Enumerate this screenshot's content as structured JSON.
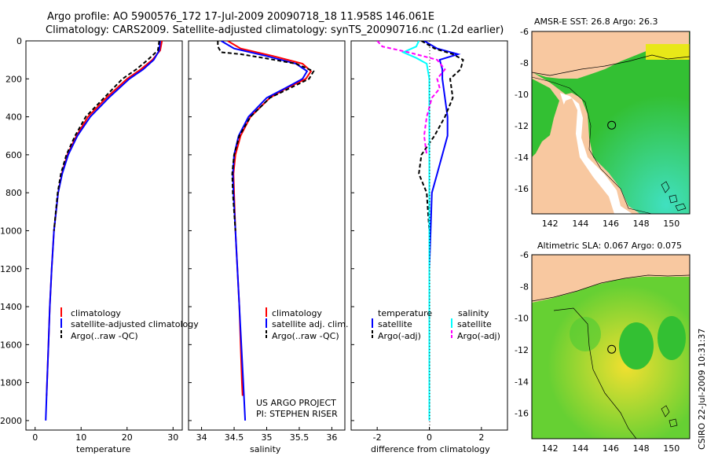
{
  "header": {
    "line1": "Argo profile: AO 5900576_172 17-Jul-2009 20090718_18 11.958S 146.061E",
    "line2": "Climatology: CARS2009. Satellite-adjusted climatology: synTS_20090716.nc (1.2d earlier)"
  },
  "footer_side": "CSIRO 22-Jul-2009 10:31:37",
  "colors": {
    "clim": "#ff0000",
    "sat": "#0000ff",
    "argo": "#000000",
    "sat_sal": "#00ffff",
    "argo_sal": "#ff00ff",
    "land": "#f8c8a0",
    "ocean": "#33c033"
  },
  "chart_data": [
    {
      "type": "line",
      "name": "temperature",
      "xlabel": "temperature",
      "ylabel": "",
      "xlim": [
        -2,
        32
      ],
      "ylim": [
        2050,
        0
      ],
      "xticks": [
        "0",
        "10",
        "20",
        "30"
      ],
      "yticks": [
        "0",
        "200",
        "400",
        "600",
        "800",
        "1000",
        "1200",
        "1400",
        "1600",
        "1800",
        "2000"
      ],
      "legend": [
        "climatology",
        "satellite-adjusted climatology",
        "Argo(..raw -QC)"
      ],
      "series": [
        {
          "name": "climatology",
          "y": [
            0,
            50,
            100,
            150,
            200,
            300,
            400,
            500,
            600,
            700,
            800,
            1000,
            1200,
            1400,
            1600,
            1800,
            1870
          ],
          "x": [
            27.6,
            27.2,
            25.5,
            23.0,
            20.0,
            15.5,
            11.5,
            9.0,
            7.0,
            5.8,
            5.0,
            4.1,
            3.6,
            3.2,
            2.9,
            2.6,
            2.5
          ]
        },
        {
          "name": "satellite-adjusted climatology",
          "y": [
            0,
            50,
            100,
            150,
            200,
            300,
            400,
            500,
            600,
            700,
            800,
            1000,
            1200,
            1400,
            1600,
            1800,
            2000
          ],
          "x": [
            27.2,
            27.0,
            25.8,
            23.5,
            20.5,
            16.0,
            12.0,
            9.2,
            7.2,
            5.9,
            5.0,
            4.1,
            3.6,
            3.2,
            2.9,
            2.6,
            2.3
          ]
        },
        {
          "name": "Argo(..raw -QC)",
          "y": [
            0,
            50,
            100,
            150,
            200,
            300,
            400,
            500,
            600,
            700,
            800,
            900,
            1000
          ],
          "x": [
            27.0,
            26.7,
            24.5,
            22.0,
            19.0,
            15.0,
            11.0,
            8.7,
            6.8,
            5.6,
            4.9,
            4.5,
            4.1
          ]
        }
      ]
    },
    {
      "type": "line",
      "name": "salinity",
      "xlabel": "salinity",
      "xlim": [
        33.8,
        36.2
      ],
      "ylim": [
        2050,
        0
      ],
      "xticks": [
        "34",
        "34.5",
        "35",
        "35.5",
        "36"
      ],
      "legend": [
        "climatology",
        "satellite adj. clim.",
        "Argo(..raw -QC)"
      ],
      "annotation": [
        "US ARGO PROJECT",
        "PI: STEPHEN RISER"
      ],
      "series": [
        {
          "name": "climatology",
          "y": [
            0,
            40,
            80,
            120,
            160,
            200,
            250,
            300,
            400,
            500,
            600,
            700,
            800,
            1000,
            1200,
            1400,
            1600,
            1800,
            1870
          ],
          "x": [
            34.4,
            34.6,
            35.1,
            35.55,
            35.68,
            35.6,
            35.3,
            35.05,
            34.75,
            34.6,
            34.52,
            34.49,
            34.5,
            34.52,
            34.55,
            34.58,
            34.6,
            34.62,
            34.63
          ]
        },
        {
          "name": "satellite adj. clim.",
          "y": [
            0,
            40,
            80,
            120,
            160,
            200,
            250,
            300,
            400,
            500,
            600,
            700,
            800,
            1000,
            1200,
            1400,
            1600,
            1800,
            2000
          ],
          "x": [
            34.3,
            34.5,
            35.0,
            35.45,
            35.62,
            35.55,
            35.28,
            35.0,
            34.72,
            34.57,
            34.5,
            34.48,
            34.49,
            34.52,
            34.55,
            34.58,
            34.61,
            34.64,
            34.67
          ]
        },
        {
          "name": "Argo(..raw -QC)",
          "y": [
            0,
            30,
            60,
            70,
            90,
            120,
            160,
            200,
            250,
            300,
            400,
            500,
            600,
            700,
            800,
            900,
            1000
          ],
          "x": [
            34.25,
            34.25,
            34.3,
            34.6,
            34.95,
            35.45,
            35.72,
            35.65,
            35.35,
            35.05,
            34.75,
            34.58,
            34.5,
            34.47,
            34.48,
            34.5,
            34.52
          ]
        }
      ]
    },
    {
      "type": "line",
      "name": "difference",
      "xlabel": "difference from climatology",
      "xlim": [
        -3,
        3
      ],
      "ylim": [
        2050,
        0
      ],
      "xticks": [
        "-2",
        "0",
        "2"
      ],
      "legend_temperature": {
        "heading": "temperature",
        "items": [
          "satellite",
          "Argo(-adj)"
        ]
      },
      "legend_salinity": {
        "heading": "salinity",
        "items": [
          "satellite",
          "Argo(-adj)"
        ]
      },
      "series": [
        {
          "name": "temperature satellite",
          "y": [
            0,
            40,
            70,
            100,
            150,
            200,
            300,
            400,
            500,
            600,
            700,
            800,
            1000,
            1200,
            1400,
            1600,
            1800,
            2000
          ],
          "x": [
            -0.2,
            0.3,
            1.1,
            0.4,
            0.5,
            0.5,
            0.6,
            0.7,
            0.7,
            0.5,
            0.3,
            0.1,
            0.05,
            0.0,
            0.0,
            0.0,
            0.0,
            0.0
          ]
        },
        {
          "name": "temperature Argo(-adj)",
          "y": [
            0,
            40,
            70,
            100,
            150,
            200,
            300,
            400,
            500,
            600,
            700,
            800,
            900,
            1000
          ],
          "x": [
            -0.3,
            0.2,
            0.9,
            1.3,
            1.2,
            0.8,
            0.9,
            0.6,
            0.2,
            -0.3,
            -0.4,
            -0.1,
            -0.05,
            0.0
          ]
        },
        {
          "name": "salinity satellite",
          "y": [
            0,
            30,
            60,
            90,
            120,
            200,
            300,
            400,
            500,
            700,
            1000,
            1500,
            2000
          ],
          "x": [
            -0.4,
            -0.5,
            -1.0,
            -0.5,
            -0.1,
            0.0,
            0.0,
            0.0,
            0.0,
            0.0,
            0.0,
            0.0,
            0.0
          ]
        },
        {
          "name": "salinity Argo(-adj)",
          "y": [
            0,
            30,
            60,
            100,
            150,
            200,
            250,
            300,
            400,
            500,
            600
          ],
          "x": [
            -2.0,
            -1.8,
            -0.8,
            0.3,
            0.6,
            0.3,
            0.4,
            0.1,
            -0.1,
            -0.2,
            -0.1
          ]
        }
      ]
    },
    {
      "type": "heatmap",
      "name": "AMSR-E SST map",
      "title": "AMSR-E SST: 26.8 Argo: 26.3",
      "xticks": [
        "142",
        "144",
        "146",
        "148",
        "150"
      ],
      "yticks": [
        "-6",
        "-8",
        "-10",
        "-12",
        "-14",
        "-16"
      ],
      "xlim": [
        140.8,
        151.2
      ],
      "ylim": [
        -17.6,
        -6
      ],
      "marker": {
        "lon": 146.06,
        "lat": -11.96
      }
    },
    {
      "type": "heatmap",
      "name": "Altimetric SLA map",
      "title": "Altimetric SLA: 0.067 Argo: 0.075",
      "xticks": [
        "142",
        "144",
        "146",
        "148",
        "150"
      ],
      "yticks": [
        "-6",
        "-8",
        "-10",
        "-12",
        "-14",
        "-16"
      ],
      "xlim": [
        140.8,
        151.2
      ],
      "ylim": [
        -17.6,
        -6
      ],
      "marker": {
        "lon": 146.06,
        "lat": -11.96
      }
    }
  ]
}
